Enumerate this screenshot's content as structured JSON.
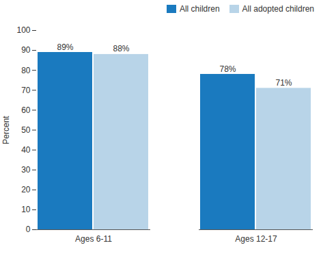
{
  "chart_data": {
    "type": "bar",
    "categories": [
      "Ages 6-11",
      "Ages 12-17"
    ],
    "series": [
      {
        "name": "All children",
        "color": "#1a7abf",
        "values": [
          89,
          78
        ],
        "value_labels": [
          "89%",
          "78%"
        ]
      },
      {
        "name": "All adopted children",
        "color": "#b8d4e8",
        "values": [
          88,
          71
        ],
        "value_labels": [
          "88%",
          "71%"
        ]
      }
    ],
    "ylabel": "Percent",
    "ylim": [
      0,
      100
    ],
    "yticks": [
      0,
      10,
      20,
      30,
      40,
      50,
      60,
      70,
      80,
      90,
      100
    ],
    "data_labels": true,
    "legend": "upper right",
    "grid": false
  }
}
